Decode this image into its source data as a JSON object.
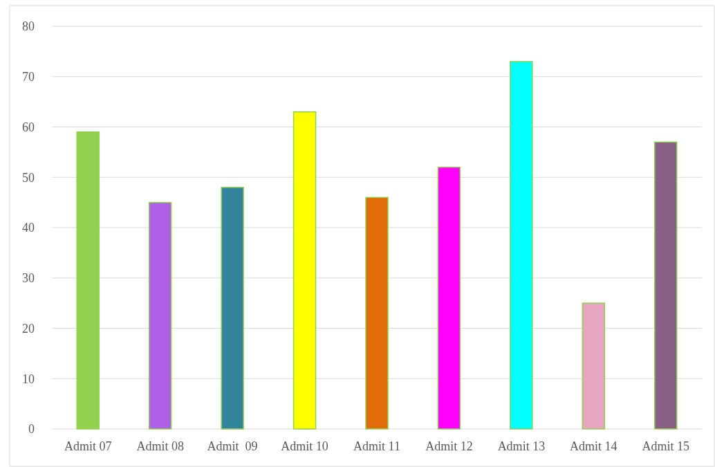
{
  "chart_data": {
    "type": "bar",
    "categories": [
      "Admit 07",
      "Admit 08",
      "Admit  09",
      "Admit 10",
      "Admit 11",
      "Admit 12",
      "Admit 13",
      "Admit 14",
      "Admit 15"
    ],
    "values": [
      59,
      45,
      48,
      63,
      46,
      52,
      73,
      25,
      57
    ],
    "colors": [
      "#92d050",
      "#ae60e6",
      "#31849b",
      "#ffff00",
      "#e36c0a",
      "#ff00ff",
      "#00ffff",
      "#e6a5c0",
      "#886185"
    ],
    "ylim": [
      0,
      80
    ],
    "yticks": [
      0,
      10,
      20,
      30,
      40,
      50,
      60,
      70,
      80
    ],
    "grid": "y"
  }
}
